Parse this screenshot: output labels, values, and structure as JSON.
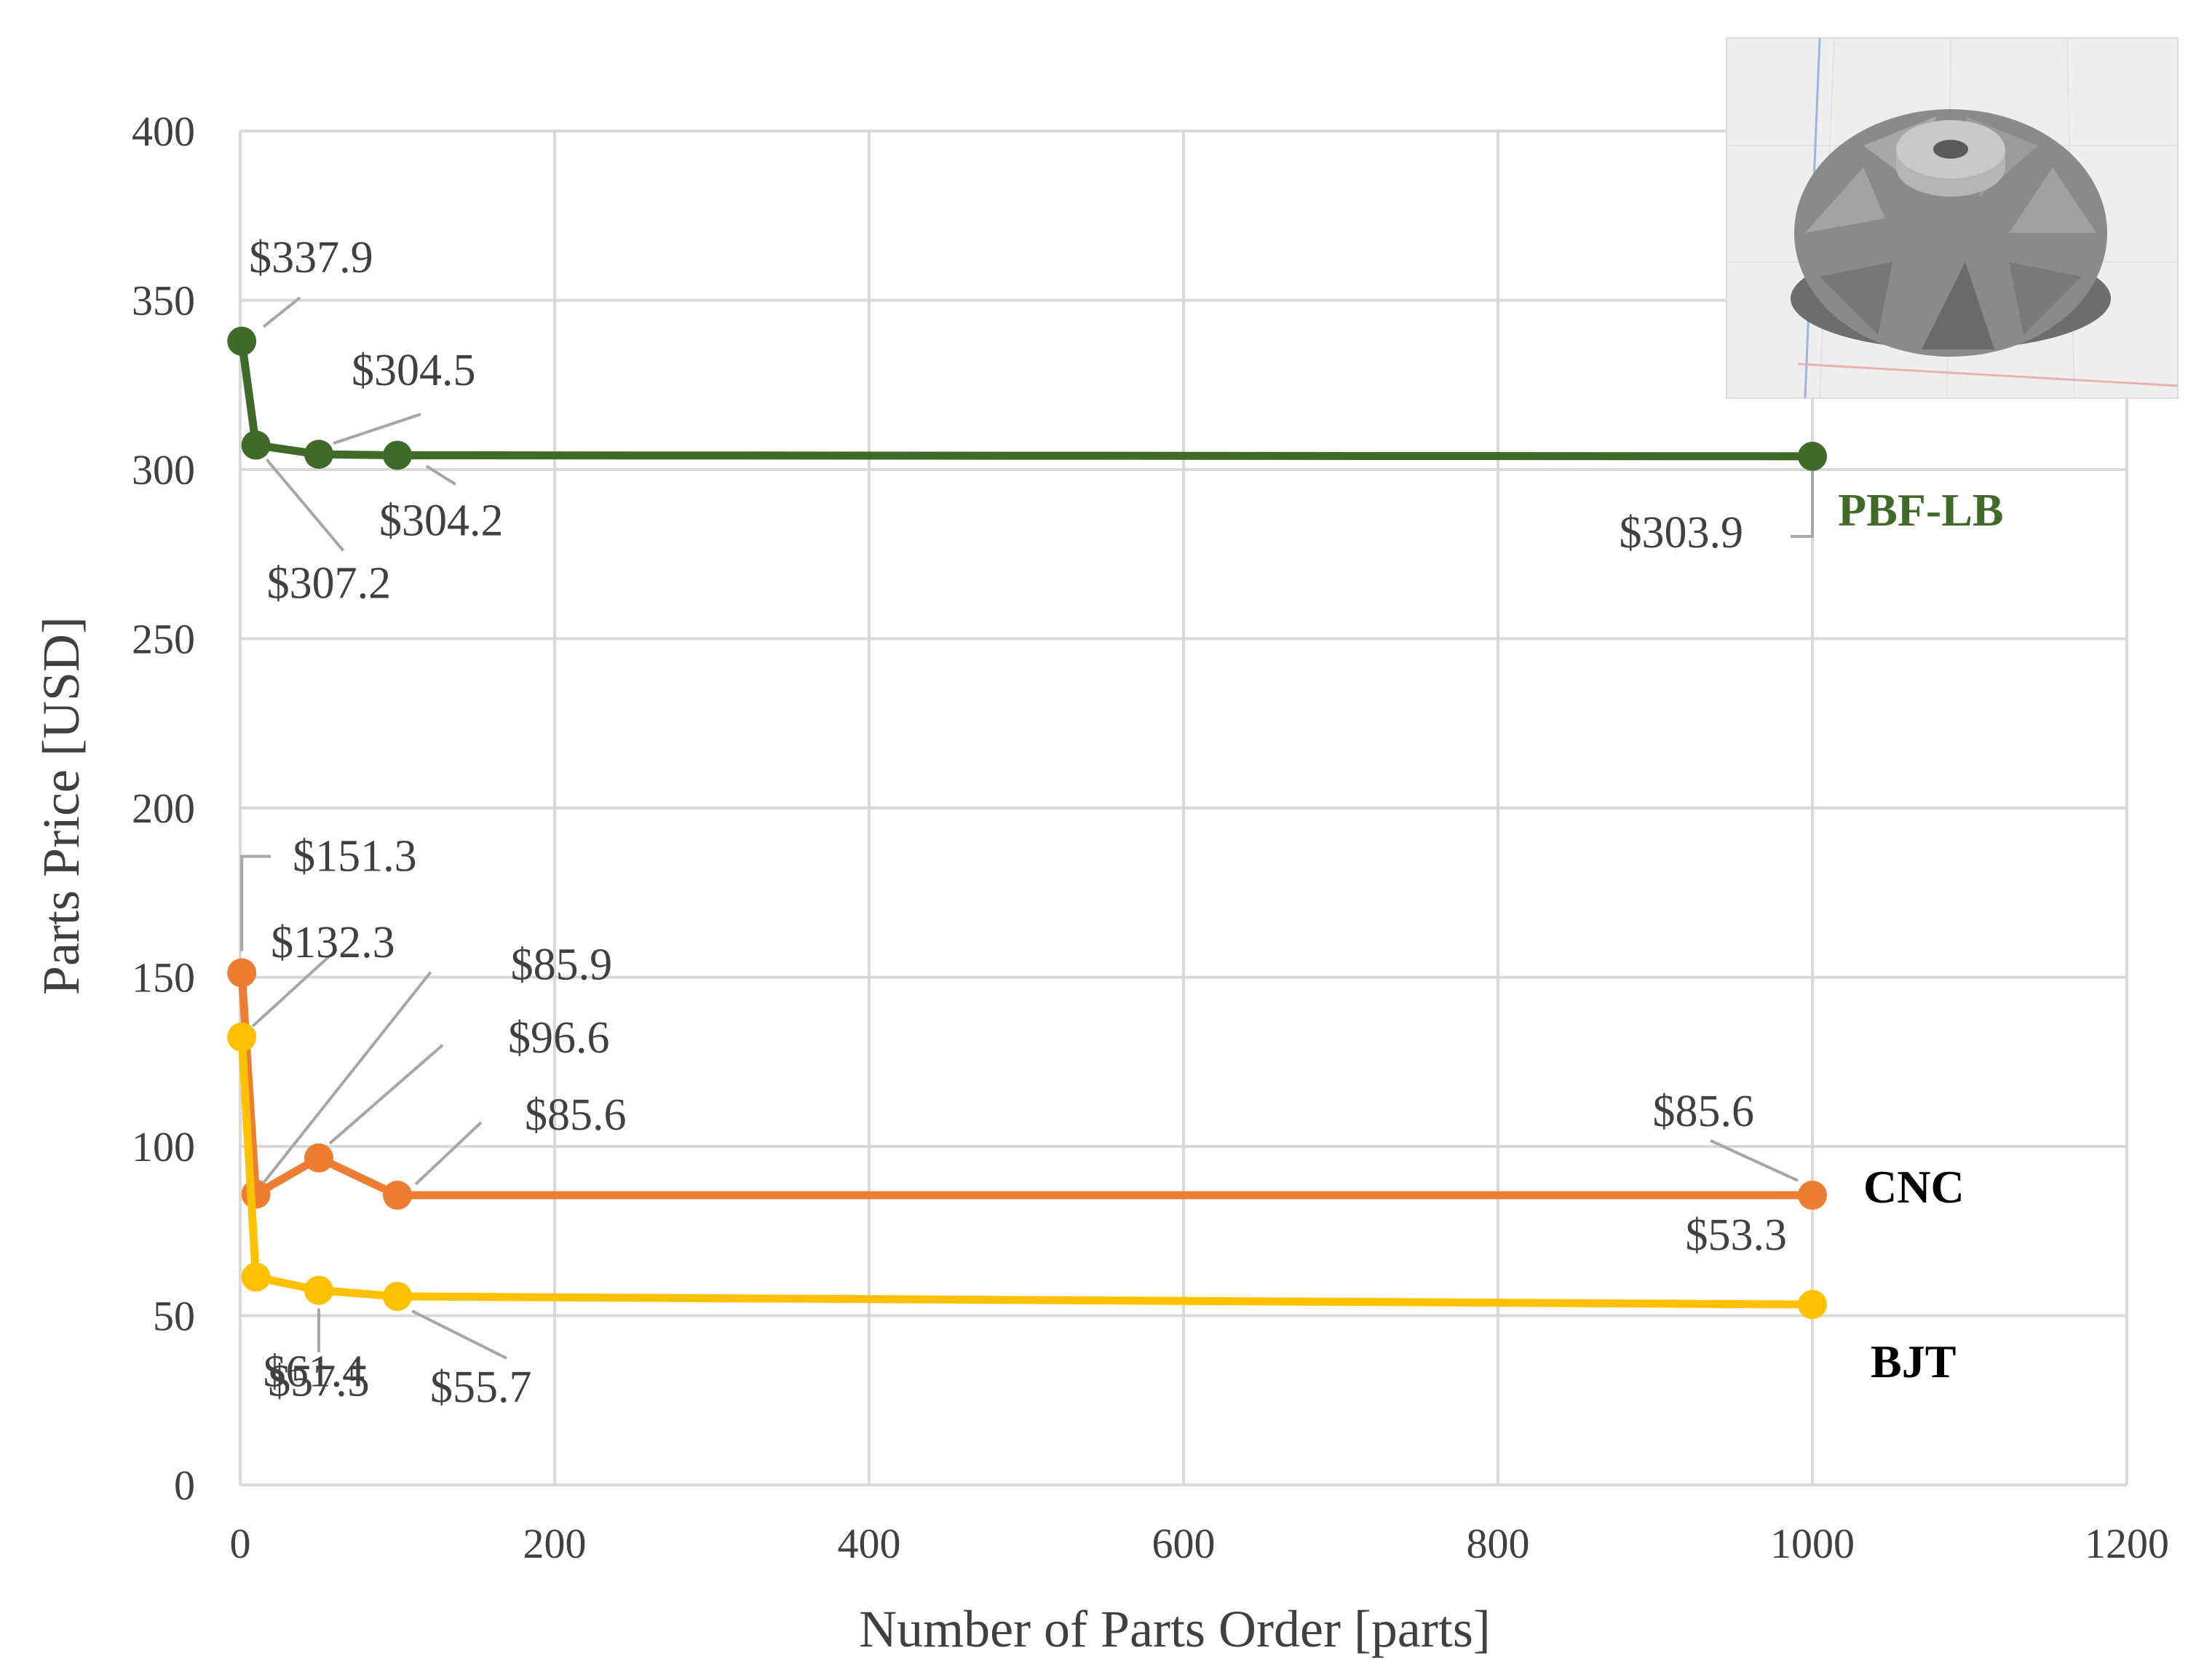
{
  "chart_data": {
    "type": "line",
    "xlabel": "Number of Parts Order [parts]",
    "ylabel": "Parts Price [USD]",
    "xlim": [
      0,
      1200
    ],
    "ylim": [
      0,
      400
    ],
    "x_ticks": [
      "0",
      "200",
      "400",
      "600",
      "800",
      "1000",
      "1200"
    ],
    "y_ticks": [
      "0",
      "50",
      "100",
      "150",
      "200",
      "250",
      "300",
      "350",
      "400"
    ],
    "grid": true,
    "legend": "none (series labelled inline at right end)",
    "inset_image": "impeller-3d-model",
    "series": [
      {
        "name": "PBF-LB",
        "color": "#3f6a27",
        "x": [
          1,
          10,
          50,
          100,
          1000
        ],
        "y": [
          337.9,
          307.2,
          304.5,
          304.2,
          303.9
        ],
        "labels": [
          "$337.9",
          "$307.2",
          "$304.5",
          "$304.2",
          "$303.9"
        ]
      },
      {
        "name": "CNC",
        "color": "#ed7d31",
        "x": [
          1,
          10,
          50,
          100,
          1000
        ],
        "y": [
          151.3,
          85.9,
          96.6,
          85.6,
          85.6
        ],
        "labels": [
          "$151.3",
          "$85.9",
          "$96.6",
          "$85.6",
          "$85.6"
        ]
      },
      {
        "name": "BJT",
        "color": "#ffc000",
        "x": [
          1,
          10,
          50,
          100,
          1000
        ],
        "y": [
          132.3,
          61.4,
          57.5,
          55.7,
          53.3
        ],
        "labels": [
          "$132.3",
          "$61.4",
          "$57.5",
          "$55.7",
          "$53.3"
        ]
      }
    ]
  }
}
